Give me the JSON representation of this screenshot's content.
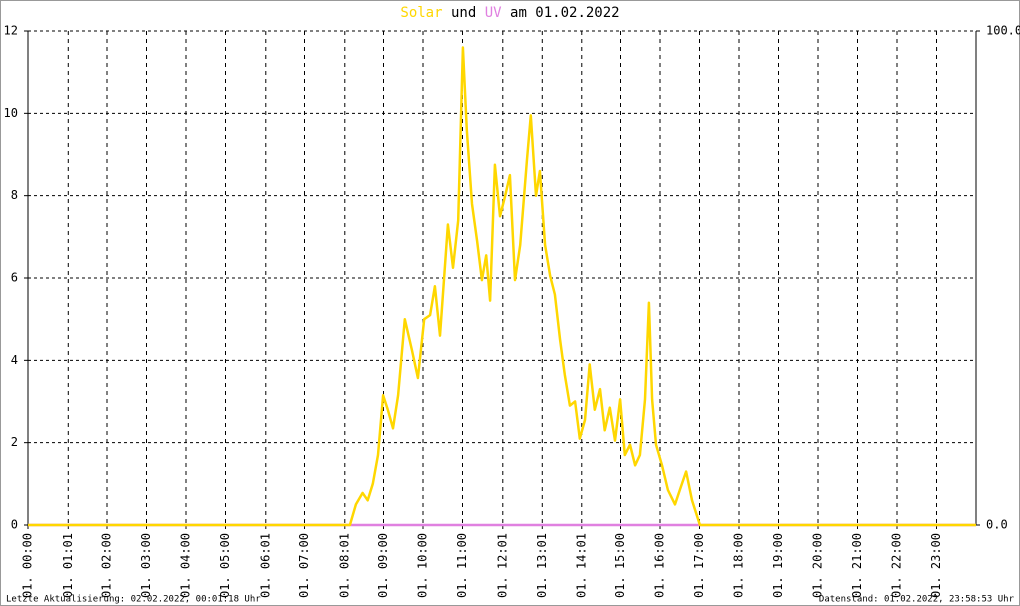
{
  "chart_data": {
    "type": "line",
    "title_joiner": "und",
    "title_suffix": "am 01.02.2022",
    "footer_left": "Letzte Aktualisierung: 02.02.2022, 00:01:18 Uhr",
    "footer_right": "Datenstand: 01.02.2022, 23:58:53 Uhr",
    "xlim": [
      0,
      24
    ],
    "xticks": [
      {
        "value": 0,
        "label": "01. 00:00"
      },
      {
        "value": 1.02,
        "label": "01. 01:01"
      },
      {
        "value": 2,
        "label": "01. 02:00"
      },
      {
        "value": 3,
        "label": "01. 03:00"
      },
      {
        "value": 4,
        "label": "01. 04:00"
      },
      {
        "value": 5,
        "label": "01. 05:00"
      },
      {
        "value": 6.02,
        "label": "01. 06:01"
      },
      {
        "value": 7,
        "label": "01. 07:00"
      },
      {
        "value": 8.02,
        "label": "01. 08:01"
      },
      {
        "value": 9,
        "label": "01. 09:00"
      },
      {
        "value": 10,
        "label": "01. 10:00"
      },
      {
        "value": 11,
        "label": "01. 11:00"
      },
      {
        "value": 12.02,
        "label": "01. 12:01"
      },
      {
        "value": 13.02,
        "label": "01. 13:01"
      },
      {
        "value": 14.02,
        "label": "01. 14:01"
      },
      {
        "value": 15,
        "label": "01. 15:00"
      },
      {
        "value": 16,
        "label": "01. 16:00"
      },
      {
        "value": 17,
        "label": "01. 17:00"
      },
      {
        "value": 18,
        "label": "01. 18:00"
      },
      {
        "value": 19,
        "label": "01. 19:00"
      },
      {
        "value": 20,
        "label": "01. 20:00"
      },
      {
        "value": 21,
        "label": "01. 21:00"
      },
      {
        "value": 22,
        "label": "01. 22:00"
      },
      {
        "value": 23,
        "label": "01. 23:00"
      }
    ],
    "ylim": [
      0,
      12
    ],
    "yticks": [
      0,
      2,
      4,
      6,
      8,
      10,
      12
    ],
    "y2lim": [
      0,
      100
    ],
    "y2ticks": [
      {
        "value": 0,
        "label": "0.0"
      },
      {
        "value": 100,
        "label": "100.0"
      }
    ],
    "grid": true,
    "series": [
      {
        "name": "UV",
        "color": "#e080e0",
        "axis": "y2",
        "x": [
          0,
          24
        ],
        "values": [
          0,
          0
        ]
      },
      {
        "name": "Solar",
        "color": "#ffd700",
        "x": [
          0,
          8.15,
          8.3,
          8.47,
          8.6,
          8.73,
          8.86,
          8.99,
          9.11,
          9.24,
          9.37,
          9.54,
          9.72,
          9.87,
          10.03,
          10.18,
          10.3,
          10.43,
          10.63,
          10.76,
          10.89,
          10.94,
          11.01,
          11.11,
          11.24,
          11.37,
          11.49,
          11.6,
          11.7,
          11.82,
          11.95,
          12.08,
          12.2,
          12.33,
          12.46,
          12.63,
          12.73,
          12.86,
          12.96,
          13.09,
          13.22,
          13.34,
          13.47,
          13.59,
          13.72,
          13.85,
          13.97,
          14.1,
          14.22,
          14.35,
          14.48,
          14.6,
          14.73,
          14.86,
          14.99,
          15.11,
          15.24,
          15.37,
          15.49,
          15.62,
          15.72,
          15.8,
          15.9,
          16.05,
          16.2,
          16.38,
          16.5,
          16.66,
          16.81,
          17.01,
          24
        ],
        "values": [
          0,
          0,
          0.5,
          0.78,
          0.6,
          1.0,
          1.7,
          3.15,
          2.8,
          2.35,
          3.15,
          5.0,
          4.25,
          3.57,
          5.0,
          5.1,
          5.8,
          4.6,
          7.3,
          6.25,
          7.4,
          9.1,
          11.6,
          9.6,
          7.8,
          6.9,
          5.95,
          6.55,
          5.45,
          8.75,
          7.5,
          8.0,
          8.5,
          5.95,
          6.8,
          8.85,
          9.95,
          8.0,
          8.6,
          6.8,
          6.05,
          5.6,
          4.5,
          3.65,
          2.9,
          3.0,
          2.1,
          2.55,
          3.9,
          2.8,
          3.3,
          2.3,
          2.85,
          2.05,
          3.05,
          1.7,
          1.95,
          1.45,
          1.7,
          3.05,
          5.4,
          3.05,
          1.95,
          1.45,
          0.85,
          0.5,
          0.85,
          1.3,
          0.6,
          0,
          0
        ]
      }
    ]
  }
}
